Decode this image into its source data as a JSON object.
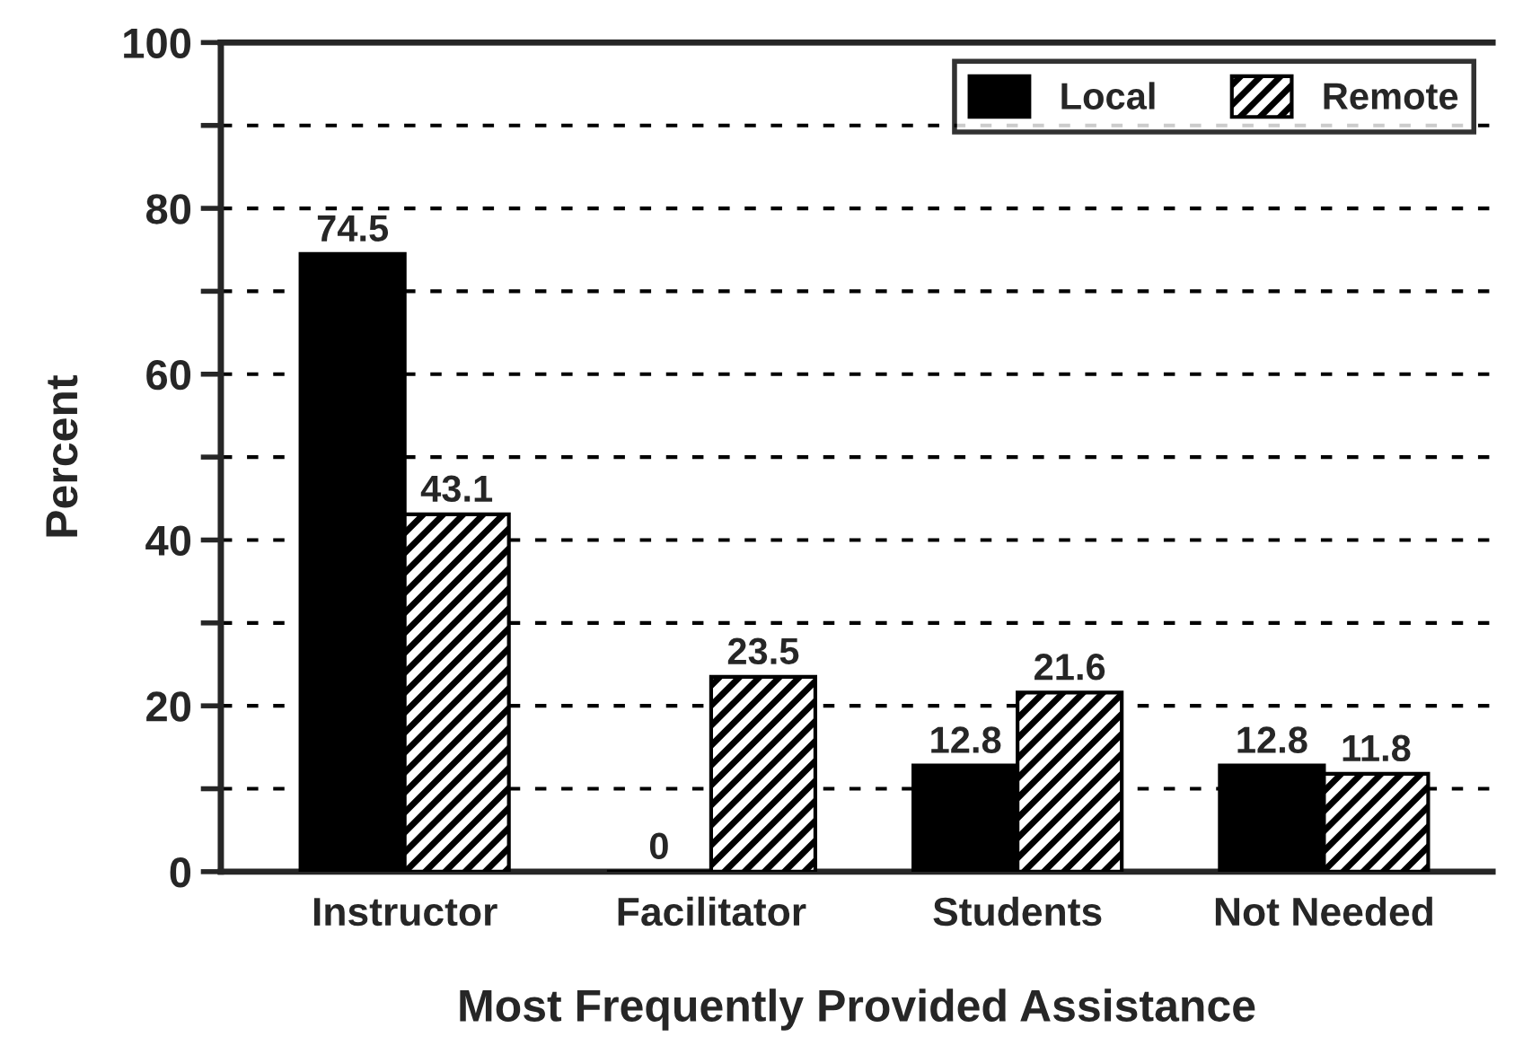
{
  "chart_data": {
    "type": "bar",
    "xlabel": "Most Frequently Provided Assistance",
    "ylabel": "Percent",
    "categories": [
      "Instructor",
      "Facilitator",
      "Students",
      "Not Needed"
    ],
    "series": [
      {
        "name": "Local",
        "color": "#000000",
        "values": [
          74.5,
          0,
          12.8,
          12.8
        ]
      },
      {
        "name": "Remote",
        "color": "#000000",
        "values": [
          43.1,
          23.5,
          21.6,
          11.8
        ]
      }
    ],
    "ylim": [
      0,
      100
    ],
    "yticks": [
      0,
      {
        "value": 10,
        "label": null
      },
      20,
      {
        "value": 30,
        "label": null
      },
      40,
      {
        "value": 50,
        "label": null
      },
      60,
      {
        "value": 70,
        "label": null
      },
      80,
      {
        "value": 90,
        "label": null
      },
      100
    ],
    "grid": "y",
    "legend": "top right",
    "data_labels": true
  }
}
